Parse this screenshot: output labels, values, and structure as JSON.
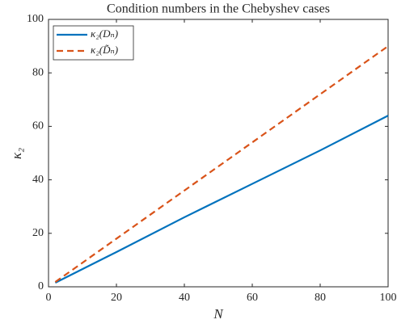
{
  "chart_data": {
    "type": "line",
    "title": "Condition numbers in the Chebyshev cases",
    "x_label": "N",
    "y_label": "κ₂",
    "x": [
      2,
      20,
      40,
      60,
      80,
      100
    ],
    "series": [
      {
        "name": "κ₂(Dₙ)",
        "color": "#0072BD",
        "dash": false,
        "values": [
          1.5,
          13,
          26,
          38.5,
          51,
          64
        ]
      },
      {
        "name": "κ₂(D̃ₙ)",
        "color": "#D95319",
        "dash": true,
        "values": [
          1.8,
          18,
          36,
          54,
          72,
          90
        ]
      }
    ],
    "xlim": [
      0,
      100
    ],
    "xticks": [
      0,
      20,
      40,
      60,
      80,
      100
    ],
    "ylim": [
      0,
      100
    ],
    "yticks": [
      0,
      20,
      40,
      60,
      80,
      100
    ],
    "legend": "upper-left",
    "grid": false
  }
}
